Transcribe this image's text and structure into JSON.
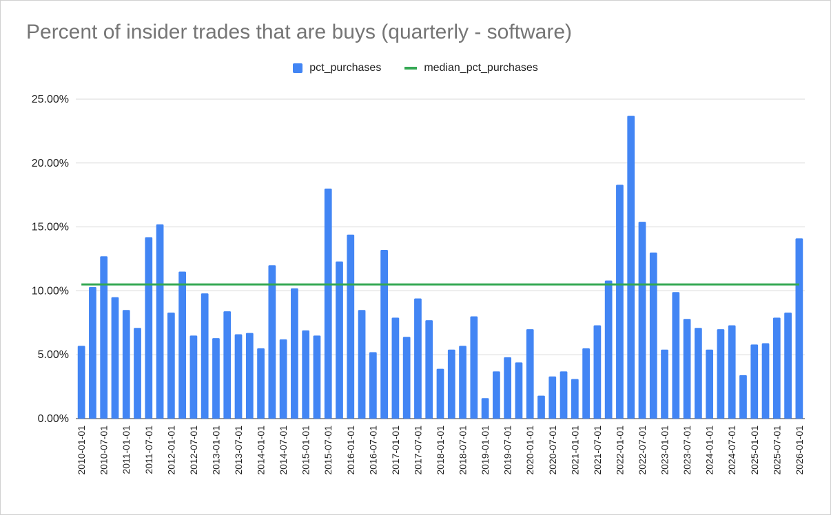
{
  "chart_data": {
    "type": "bar",
    "title": "Percent of insider trades that are buys (quarterly - software)",
    "xlabel": "",
    "ylabel": "",
    "ylim": [
      0,
      25
    ],
    "grid": true,
    "legend_position": "top",
    "y_ticks": [
      "0.00%",
      "5.00%",
      "10.00%",
      "15.00%",
      "20.00%",
      "25.00%"
    ],
    "y_tick_values": [
      0,
      5,
      10,
      15,
      20,
      25
    ],
    "categories": [
      "2010-01-01",
      "2010-04-01",
      "2010-07-01",
      "2010-10-01",
      "2011-01-01",
      "2011-04-01",
      "2011-07-01",
      "2011-10-01",
      "2012-01-01",
      "2012-04-01",
      "2012-07-01",
      "2012-10-01",
      "2013-01-01",
      "2013-04-01",
      "2013-07-01",
      "2013-10-01",
      "2014-01-01",
      "2014-04-01",
      "2014-07-01",
      "2014-10-01",
      "2015-01-01",
      "2015-04-01",
      "2015-07-01",
      "2015-10-01",
      "2016-01-01",
      "2016-04-01",
      "2016-07-01",
      "2016-10-01",
      "2017-01-01",
      "2017-04-01",
      "2017-07-01",
      "2017-10-01",
      "2018-01-01",
      "2018-04-01",
      "2018-07-01",
      "2018-10-01",
      "2019-01-01",
      "2019-04-01",
      "2019-07-01",
      "2019-10-01",
      "2020-01-01",
      "2020-04-01",
      "2020-07-01",
      "2020-10-01",
      "2021-01-01",
      "2021-04-01",
      "2021-07-01",
      "2021-10-01",
      "2022-01-01",
      "2022-04-01",
      "2022-07-01",
      "2022-10-01",
      "2023-01-01",
      "2023-04-01",
      "2023-07-01",
      "2023-10-01",
      "2024-01-01",
      "2024-04-01",
      "2024-07-01",
      "2024-10-01",
      "2025-01-01",
      "2025-04-01",
      "2025-07-01",
      "2025-10-01",
      "2026-01-01"
    ],
    "x_tick_labels": [
      "2010-01-01",
      "2010-07-01",
      "2011-01-01",
      "2011-07-01",
      "2012-01-01",
      "2012-07-01",
      "2013-01-01",
      "2013-07-01",
      "2014-01-01",
      "2014-07-01",
      "2015-01-01",
      "2015-07-01",
      "2016-01-01",
      "2016-07-01",
      "2017-01-01",
      "2017-07-01",
      "2018-01-01",
      "2018-07-01",
      "2019-01-01",
      "2019-07-01",
      "2020-01-01",
      "2020-07-01",
      "2021-01-01",
      "2021-07-01",
      "2022-01-01",
      "2022-07-01",
      "2023-01-01",
      "2023-07-01",
      "2024-01-01",
      "2024-07-01",
      "2025-01-01",
      "2025-07-01",
      "2026-01-01"
    ],
    "series": [
      {
        "name": "pct_purchases",
        "color": "#4285f4",
        "type": "bar",
        "values": [
          5.7,
          10.3,
          12.7,
          9.5,
          8.5,
          7.1,
          14.2,
          15.2,
          8.3,
          11.5,
          6.5,
          9.8,
          6.3,
          8.4,
          6.6,
          6.7,
          5.5,
          12.0,
          6.2,
          10.2,
          6.9,
          6.5,
          18.0,
          12.3,
          14.4,
          8.5,
          5.2,
          13.2,
          7.9,
          6.4,
          9.4,
          7.7,
          3.9,
          5.4,
          5.7,
          8.0,
          1.6,
          3.7,
          4.8,
          4.4,
          7.0,
          1.8,
          3.3,
          3.7,
          3.1,
          5.5,
          7.3,
          10.8,
          18.3,
          23.7,
          15.4,
          13.0,
          5.4,
          9.9,
          7.8,
          7.1,
          5.4,
          7.0,
          7.3,
          3.4,
          5.8,
          5.9,
          7.9,
          8.3,
          14.1
        ]
      },
      {
        "name": "median_pct_purchases",
        "color": "#34a853",
        "type": "line",
        "value": 10.5
      }
    ]
  }
}
